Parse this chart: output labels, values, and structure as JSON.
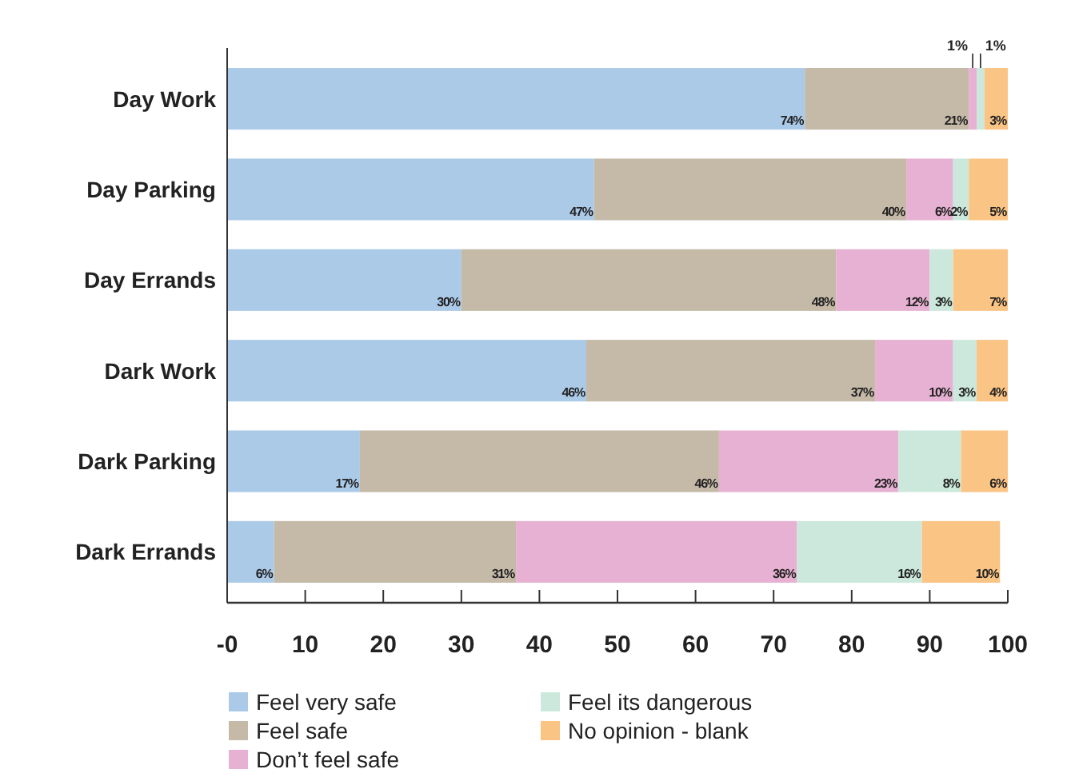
{
  "chart_data": {
    "type": "bar",
    "orientation": "horizontal",
    "stacked": true,
    "legend": "bottom",
    "grid": false,
    "categories": [
      "Day Work",
      "Day Parking",
      "Day Errands",
      "Dark Work",
      "Dark Parking",
      "Dark Errands"
    ],
    "xlim": [
      0,
      100
    ],
    "xticks": [
      {
        "value": 0,
        "label": "-0"
      },
      10,
      20,
      30,
      40,
      50,
      60,
      70,
      80,
      90,
      100
    ],
    "series": [
      {
        "name": "Feel very safe",
        "color": "#abcae8",
        "values": [
          74,
          47,
          30,
          46,
          17,
          6
        ],
        "value_labels": [
          "74%",
          "47%",
          "30%",
          "46%",
          "17%",
          "6%"
        ]
      },
      {
        "name": "Feel safe",
        "color": "#c5b9a7",
        "values": [
          21,
          40,
          48,
          37,
          46,
          31
        ],
        "value_labels": [
          "21%",
          "40%",
          "48%",
          "37%",
          "46%",
          "31%"
        ]
      },
      {
        "name": "Don’t feel safe",
        "color": "#e6b1d2",
        "values": [
          1,
          6,
          12,
          10,
          23,
          36
        ],
        "value_labels": [
          "1%",
          "6%",
          "12%",
          "10%",
          "23%",
          "36%"
        ]
      },
      {
        "name": "Feel its dangerous",
        "color": "#cce8dc",
        "values": [
          1,
          2,
          3,
          3,
          8,
          16
        ],
        "value_labels": [
          "1%",
          "2%",
          "3%",
          "3%",
          "8%",
          "16%"
        ]
      },
      {
        "name": "No opinion - blank",
        "color": "#fac485",
        "values": [
          3,
          5,
          7,
          4,
          6,
          10
        ],
        "value_labels": [
          "3%",
          "5%",
          "7%",
          "4%",
          "6%",
          "10%"
        ]
      }
    ]
  }
}
